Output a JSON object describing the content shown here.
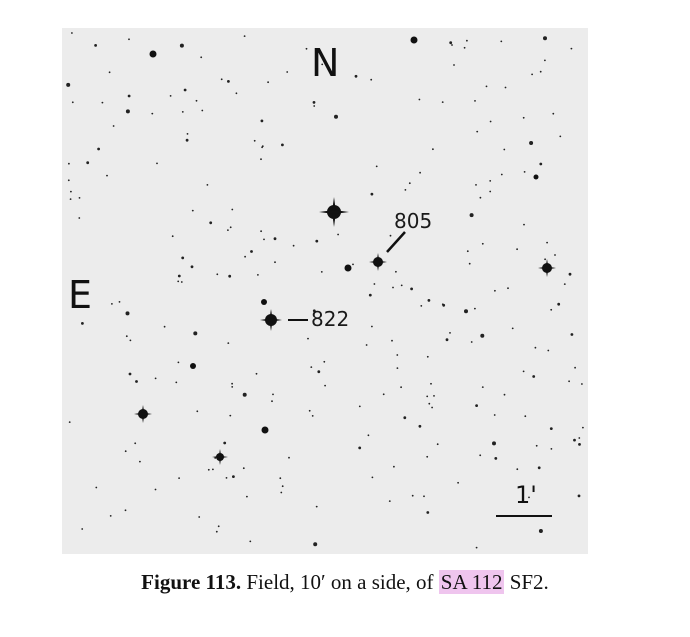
{
  "image": {
    "direction_north": "N",
    "direction_east": "E",
    "stars": [
      {
        "label": "805"
      },
      {
        "label": "822"
      }
    ],
    "scale_bar_label": "1'"
  },
  "caption": {
    "figure_label": "Figure 113.",
    "text_before": " Field, 10′ on a side, of ",
    "highlighted_name": "SA 112",
    "text_after": " SF2."
  }
}
